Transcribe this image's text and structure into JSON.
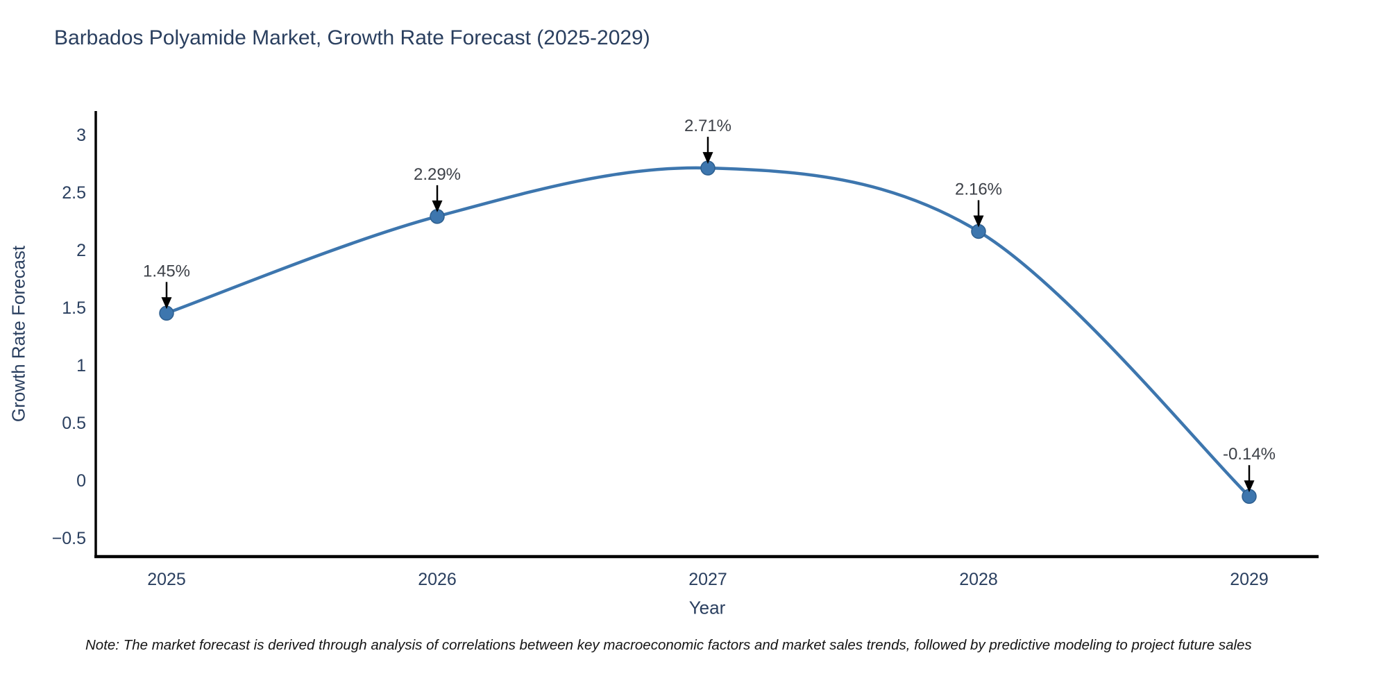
{
  "title": "Barbados Polyamide Market, Growth Rate Forecast (2025-2029)",
  "note": "Note: The market forecast is derived through analysis of correlations between key macroeconomic factors and market sales trends, followed by predictive modeling to project future sales",
  "chart_data": {
    "type": "line",
    "title": "Barbados Polyamide Market, Growth Rate Forecast (2025-2029)",
    "xlabel": "Year",
    "ylabel": "Growth Rate Forecast",
    "categories": [
      "2025",
      "2026",
      "2027",
      "2028",
      "2029"
    ],
    "values": [
      1.45,
      2.29,
      2.71,
      2.16,
      -0.14
    ],
    "point_labels": [
      "1.45%",
      "2.29%",
      "2.71%",
      "2.16%",
      "-0.14%"
    ],
    "y_ticks": [
      3,
      2.5,
      2,
      1.5,
      1,
      0.5,
      0,
      -0.5
    ],
    "y_tick_labels": [
      "3",
      "2.5",
      "2",
      "1.5",
      "1",
      "0.5",
      "0",
      "−0.5"
    ],
    "ylim": [
      -0.66,
      3.2
    ],
    "line_shape": "spline",
    "grid": false,
    "legend": "none",
    "markers": true,
    "annotations_have_arrows": true,
    "colors": {
      "line": "#3d76ae",
      "marker": "#3d76ae",
      "marker_edge": "#2e5f8f",
      "axis": "#000000",
      "tick_text": "#2a3f5f",
      "annotation_text": "#3d4148",
      "arrow": "#000000",
      "title_text": "#2a3f5f",
      "background": "#ffffff"
    }
  }
}
